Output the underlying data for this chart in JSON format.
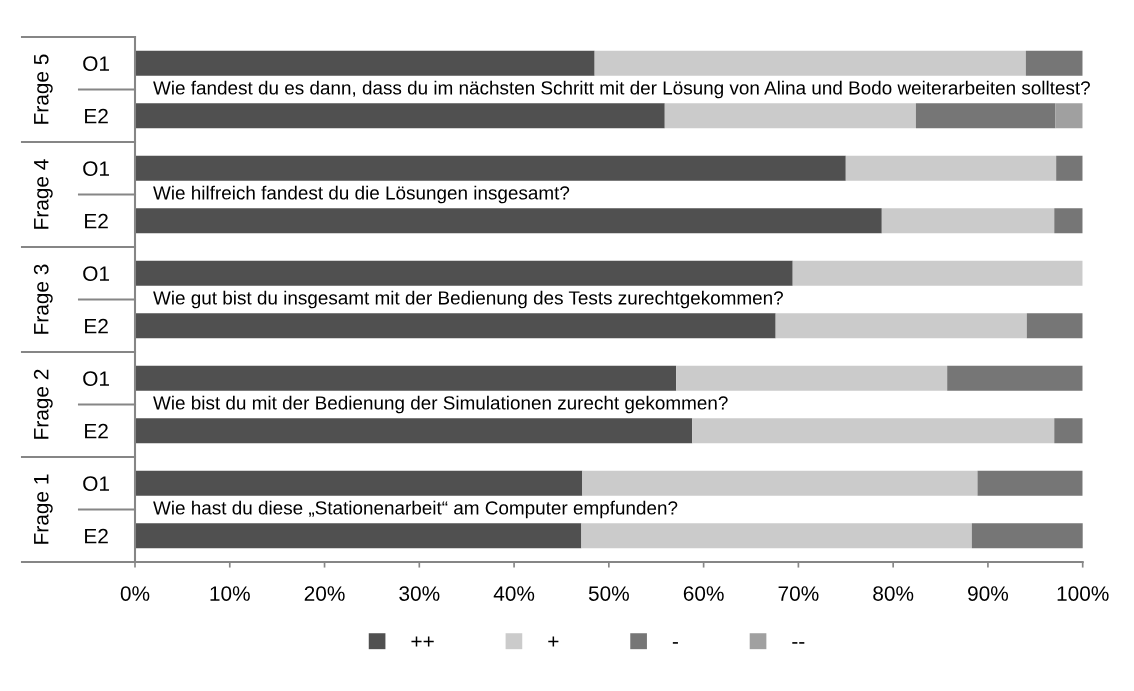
{
  "chart_data": {
    "type": "bar",
    "orientation": "horizontal",
    "stacked": true,
    "categories": [
      "O1",
      "E2",
      "O1",
      "E2",
      "O1",
      "E2",
      "O1",
      "E2",
      "O1",
      "E2"
    ],
    "series": [
      {
        "name": "++",
        "color": "#505050",
        "values": [
          48.5,
          55.9,
          75.0,
          78.8,
          69.4,
          67.6,
          57.1,
          58.8,
          47.2,
          47.1
        ]
      },
      {
        "name": "+",
        "color": "#cbcbcb",
        "values": [
          45.5,
          26.5,
          22.2,
          18.2,
          30.6,
          26.5,
          28.6,
          38.2,
          41.7,
          41.2
        ]
      },
      {
        "name": "-",
        "color": "#767676",
        "values": [
          6.0,
          14.7,
          2.8,
          3.0,
          null,
          5.9,
          14.3,
          3.0,
          11.1,
          11.8
        ]
      },
      {
        "name": "--",
        "color": "#a0a0a0",
        "values": [
          null,
          2.9,
          null,
          null,
          null,
          null,
          null,
          null,
          null,
          null
        ]
      }
    ],
    "xlim": [
      0,
      100
    ],
    "xticks": [
      {
        "value": 0,
        "label": "0%"
      },
      {
        "value": 10,
        "label": "10%"
      },
      {
        "value": 20,
        "label": "20%"
      },
      {
        "value": 30,
        "label": "30%"
      },
      {
        "value": 40,
        "label": "40%"
      },
      {
        "value": 50,
        "label": "50%"
      },
      {
        "value": 60,
        "label": "60%"
      },
      {
        "value": 70,
        "label": "70%"
      },
      {
        "value": 80,
        "label": "80%"
      },
      {
        "value": 90,
        "label": "90%"
      },
      {
        "value": 100,
        "label": "100%"
      }
    ],
    "legend": "bottom",
    "annotations": [
      "Frage 5",
      "Wie fandest du es dann, dass du im nächsten Schritt mit der Lösung von Alina und Bodo weiterarbeiten solltest?",
      "Frage 4",
      "Wie hilfreich fandest du die Lösungen insgesamt?",
      "Frage 3",
      "Wie gut bist du insgesamt mit der Bedienung des Tests zurechtgekommen?",
      "Frage 2",
      "Wie bist du mit der Bedienung der Simulationen zurecht gekommen?",
      "Frage 1",
      "Wie hast du diese „Stationenarbeit“ am Computer empfunden?"
    ]
  }
}
